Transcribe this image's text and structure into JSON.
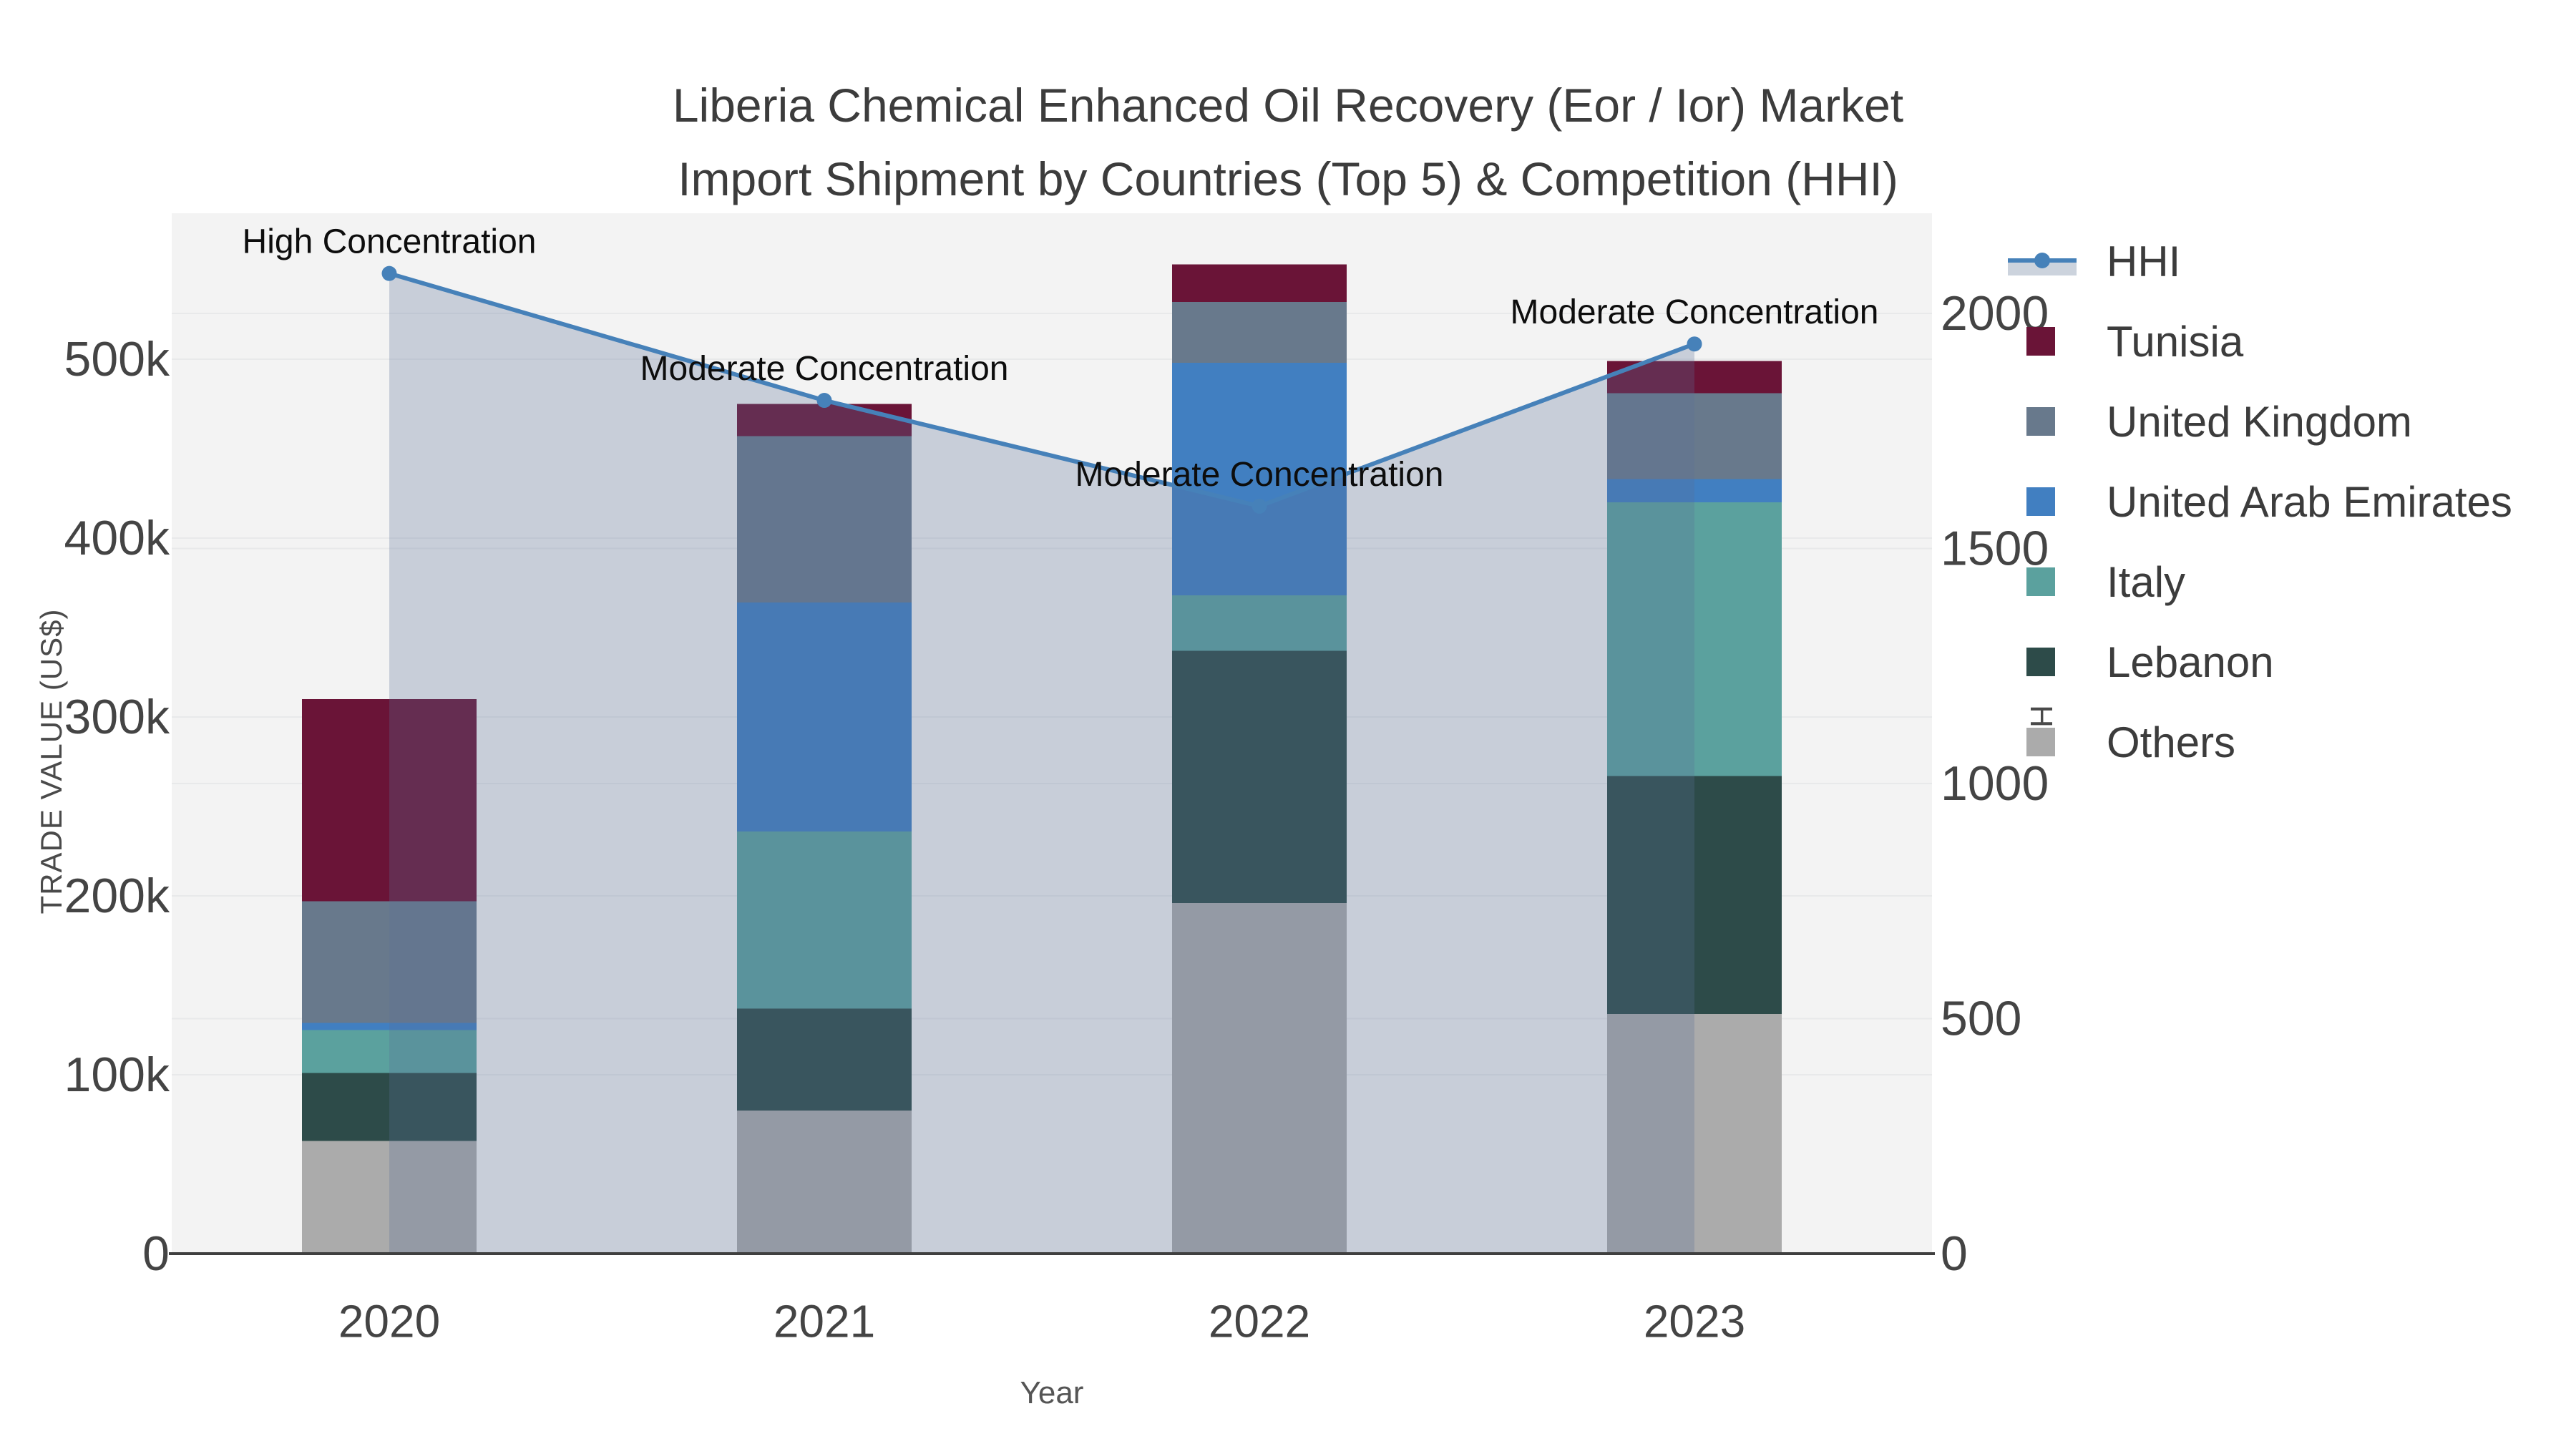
{
  "title": {
    "line1": "Liberia Chemical Enhanced Oil Recovery (Eor / Ior) Market",
    "line2": "Import Shipment by Countries (Top 5) & Competition (HHI)"
  },
  "axes": {
    "x": {
      "title": "Year",
      "tick_labels": [
        "2020",
        "2021",
        "2022",
        "2023"
      ]
    },
    "y_left": {
      "title": "TRADE VALUE (US$)",
      "tick_labels": [
        "0",
        "100k",
        "200k",
        "300k",
        "400k",
        "500k"
      ],
      "tick_values": [
        0,
        100000,
        200000,
        300000,
        400000,
        500000
      ]
    },
    "y_right": {
      "title": "HHI",
      "tick_labels": [
        "0",
        "500",
        "1000",
        "1500",
        "2000"
      ],
      "tick_values": [
        0,
        500,
        1000,
        1500,
        2000
      ]
    }
  },
  "legend": {
    "items": [
      {
        "label": "HHI",
        "type": "line",
        "color": "#4681b9",
        "band_color": "#ccd3dd"
      },
      {
        "label": "Tunisia",
        "type": "swatch",
        "color": "#6a1437"
      },
      {
        "label": "United Kingdom",
        "type": "swatch",
        "color": "#68798c"
      },
      {
        "label": "United Arab Emirates",
        "type": "swatch",
        "color": "#417fc1"
      },
      {
        "label": "Italy",
        "type": "swatch",
        "color": "#5ba19e"
      },
      {
        "label": "Lebanon",
        "type": "swatch",
        "color": "#2d4b49"
      },
      {
        "label": "Others",
        "type": "swatch",
        "color": "#ababab"
      }
    ]
  },
  "colors": {
    "plot_background": "#f3f3f3",
    "gridline": "#e8e9ea",
    "axis_line": "#3f3f3f",
    "tick_text": "#444444",
    "annotation_text": "#0d0d0d",
    "hhi_line": "#4681b9",
    "hhi_fill": "rgba(90,110,150,0.28)"
  },
  "chart_data": {
    "type": "bar",
    "subtype": "stacked-bars-with-line-overlay",
    "categories": [
      "2020",
      "2021",
      "2022",
      "2023"
    ],
    "bar_value_unit": "US$",
    "stack_order_bottom_to_top": [
      "Others",
      "Lebanon",
      "Italy",
      "United Arab Emirates",
      "United Kingdom",
      "Tunisia"
    ],
    "series": [
      {
        "name": "Tunisia",
        "color": "#6a1437",
        "values": [
          113000,
          18000,
          21000,
          18000
        ]
      },
      {
        "name": "United Kingdom",
        "color": "#68798c",
        "values": [
          68000,
          93000,
          34000,
          48000
        ]
      },
      {
        "name": "United Arab Emirates",
        "color": "#417fc1",
        "values": [
          4000,
          128000,
          130000,
          13000
        ]
      },
      {
        "name": "Italy",
        "color": "#5ba19e",
        "values": [
          24000,
          99000,
          31000,
          153000
        ]
      },
      {
        "name": "Lebanon",
        "color": "#2d4b49",
        "values": [
          38000,
          57000,
          141000,
          133000
        ]
      },
      {
        "name": "Others",
        "color": "#ababab",
        "values": [
          63000,
          80000,
          196000,
          134000
        ]
      }
    ],
    "line_series": {
      "name": "HHI",
      "axis": "right",
      "color": "#4681b9",
      "fill": "rgba(90,110,150,0.28)",
      "values": [
        2085,
        1815,
        1590,
        1935
      ]
    },
    "annotations": [
      {
        "text": "High Concentration",
        "category": "2020"
      },
      {
        "text": "Moderate Concentration",
        "category": "2021"
      },
      {
        "text": "Moderate Concentration",
        "category": "2022"
      },
      {
        "text": "Moderate Concentration",
        "category": "2023"
      }
    ],
    "xlabel": "Year",
    "ylabel_left": "TRADE VALUE (US$)",
    "ylabel_right": "HHI",
    "ylim_left": [
      0,
      595000
    ],
    "ylim_right": [
      0,
      2288
    ],
    "grid": true,
    "legend_position": "right"
  }
}
